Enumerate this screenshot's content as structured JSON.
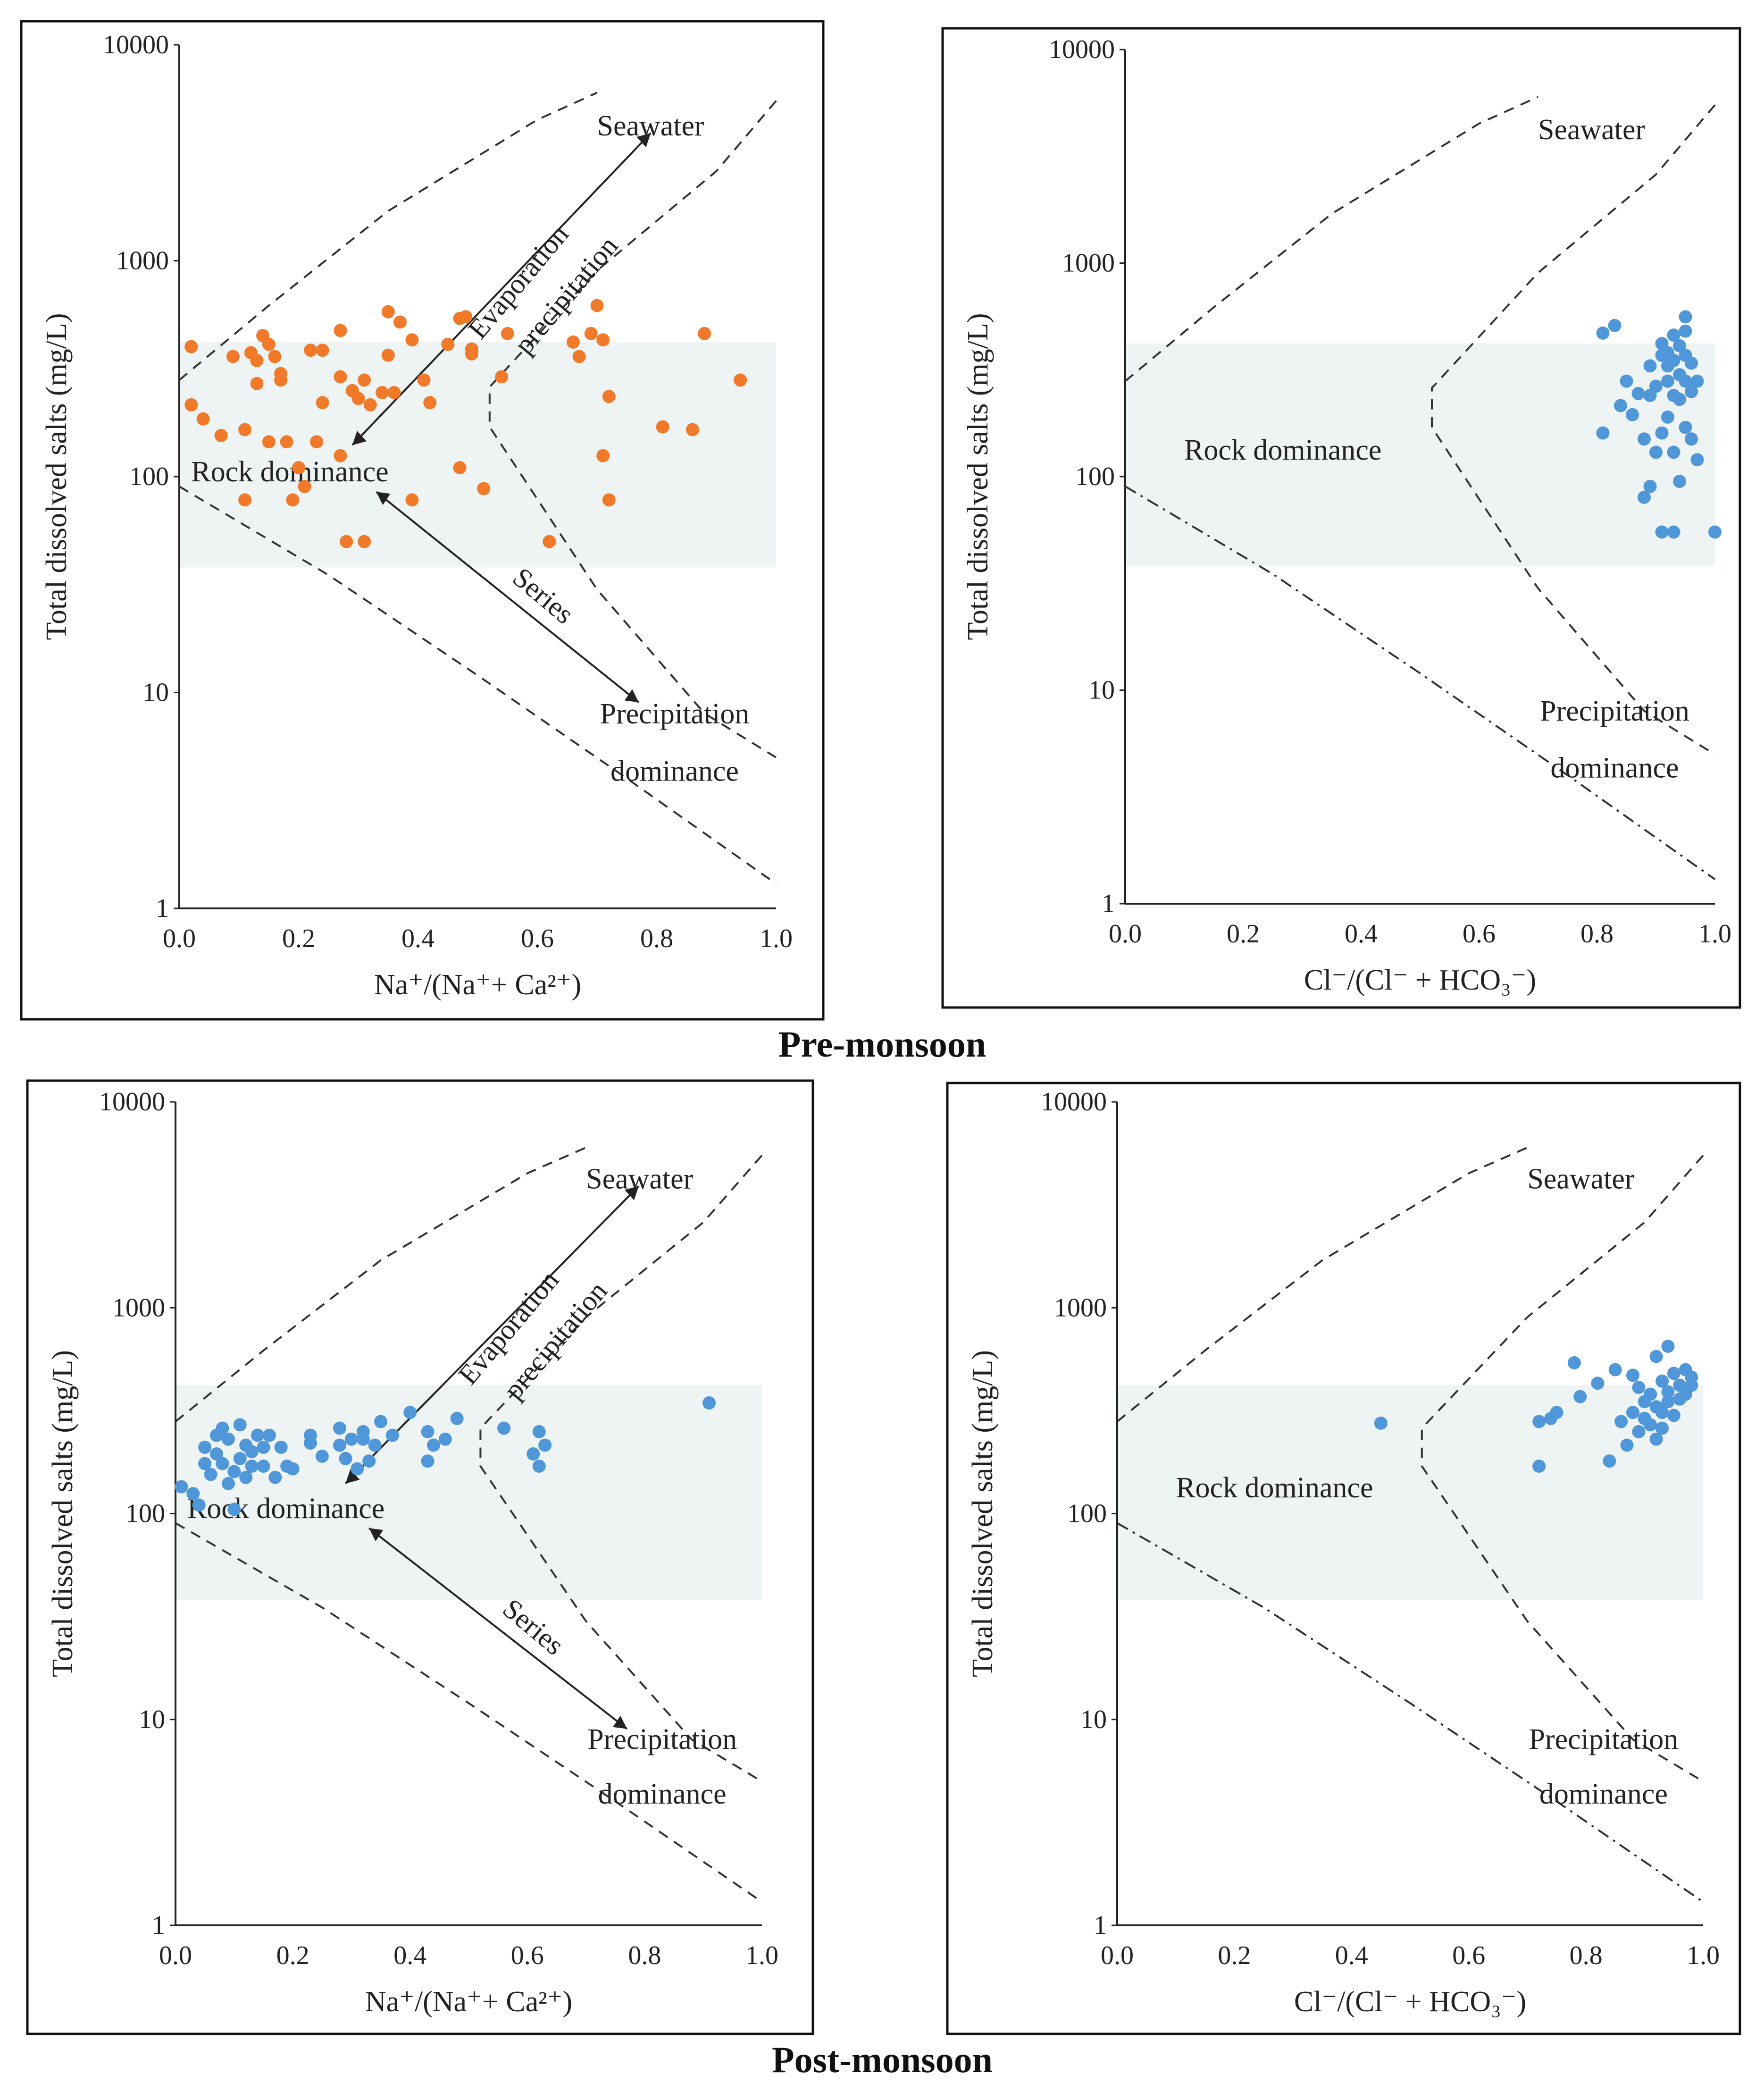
{
  "figure": {
    "captions": {
      "pre": "Pre-monsoon",
      "post": "Post-monsoon"
    },
    "colors": {
      "pre_points": "#f07a2a",
      "post_points": "#4f97d8",
      "rock_band": "#eef3f3",
      "frame": "#111111"
    }
  },
  "chart_data": [
    {
      "id": "pre-cations",
      "type": "scatter",
      "season": "Pre-monsoon",
      "ylabel": "Total dissolved salts (mg/L)",
      "xlabel": "Na⁺/(Na⁺+ Ca²⁺)",
      "xlim": [
        0.0,
        1.0
      ],
      "ylim": [
        1,
        10000
      ],
      "yscale": "log",
      "xticks": [
        "0.0",
        "0.2",
        "0.4",
        "0.6",
        "0.8",
        "1.0"
      ],
      "yticks": [
        "1",
        "10",
        "100",
        "1000",
        "10000"
      ],
      "labels": {
        "seawater": "Seawater",
        "rock": "Rock dominance",
        "precip1": "Precipitation",
        "precip2": "dominance",
        "evap": "Evaporation",
        "evap2": "precipitation",
        "series": "Series"
      },
      "point_color": "#f07a2a",
      "points": [
        [
          0.02,
          400
        ],
        [
          0.02,
          215
        ],
        [
          0.04,
          185
        ],
        [
          0.07,
          155
        ],
        [
          0.09,
          360
        ],
        [
          0.11,
          165
        ],
        [
          0.11,
          78
        ],
        [
          0.12,
          375
        ],
        [
          0.13,
          345
        ],
        [
          0.13,
          270
        ],
        [
          0.14,
          450
        ],
        [
          0.15,
          145
        ],
        [
          0.15,
          410
        ],
        [
          0.16,
          360
        ],
        [
          0.17,
          300
        ],
        [
          0.17,
          280
        ],
        [
          0.18,
          145
        ],
        [
          0.19,
          78
        ],
        [
          0.2,
          110
        ],
        [
          0.21,
          90
        ],
        [
          0.22,
          385
        ],
        [
          0.23,
          145
        ],
        [
          0.24,
          385
        ],
        [
          0.24,
          220
        ],
        [
          0.27,
          125
        ],
        [
          0.27,
          475
        ],
        [
          0.27,
          290
        ],
        [
          0.28,
          50
        ],
        [
          0.29,
          250
        ],
        [
          0.3,
          230
        ],
        [
          0.31,
          50
        ],
        [
          0.31,
          280
        ],
        [
          0.32,
          215
        ],
        [
          0.34,
          245
        ],
        [
          0.35,
          580
        ],
        [
          0.35,
          365
        ],
        [
          0.36,
          245
        ],
        [
          0.37,
          520
        ],
        [
          0.39,
          430
        ],
        [
          0.39,
          78
        ],
        [
          0.41,
          280
        ],
        [
          0.42,
          220
        ],
        [
          0.45,
          410
        ],
        [
          0.47,
          540
        ],
        [
          0.47,
          110
        ],
        [
          0.48,
          550
        ],
        [
          0.49,
          370
        ],
        [
          0.49,
          390
        ],
        [
          0.51,
          88
        ],
        [
          0.54,
          290
        ],
        [
          0.55,
          460
        ],
        [
          0.62,
          50
        ],
        [
          0.66,
          420
        ],
        [
          0.67,
          360
        ],
        [
          0.69,
          460
        ],
        [
          0.7,
          620
        ],
        [
          0.71,
          430
        ],
        [
          0.71,
          125
        ],
        [
          0.72,
          235
        ],
        [
          0.72,
          78
        ],
        [
          0.81,
          170
        ],
        [
          0.86,
          165
        ],
        [
          0.88,
          460
        ],
        [
          0.94,
          280
        ]
      ]
    },
    {
      "id": "pre-anions",
      "type": "scatter",
      "season": "Pre-monsoon",
      "ylabel": "Total dissolved salts (mg/L)",
      "xlabel": "Cl⁻/(Cl⁻ + HCO₃⁻)",
      "xlim": [
        0.0,
        1.0
      ],
      "ylim": [
        1,
        10000
      ],
      "yscale": "log",
      "xticks": [
        "0.0",
        "0.2",
        "0.4",
        "0.6",
        "0.8",
        "1.0"
      ],
      "yticks": [
        "1",
        "10",
        "100",
        "1000",
        "10000"
      ],
      "labels": {
        "seawater": "Seawater",
        "rock": "Rock dominance",
        "precip1": "Precipitation",
        "precip2": "dominance"
      },
      "point_color": "#4f97d8",
      "points": [
        [
          0.81,
          470
        ],
        [
          0.81,
          160
        ],
        [
          0.83,
          510
        ],
        [
          0.84,
          215
        ],
        [
          0.85,
          280
        ],
        [
          0.86,
          195
        ],
        [
          0.87,
          245
        ],
        [
          0.88,
          150
        ],
        [
          0.88,
          80
        ],
        [
          0.89,
          90
        ],
        [
          0.89,
          330
        ],
        [
          0.89,
          240
        ],
        [
          0.9,
          130
        ],
        [
          0.9,
          265
        ],
        [
          0.91,
          370
        ],
        [
          0.91,
          420
        ],
        [
          0.91,
          160
        ],
        [
          0.91,
          55
        ],
        [
          0.92,
          330
        ],
        [
          0.92,
          380
        ],
        [
          0.92,
          280
        ],
        [
          0.92,
          190
        ],
        [
          0.93,
          240
        ],
        [
          0.93,
          460
        ],
        [
          0.93,
          350
        ],
        [
          0.93,
          130
        ],
        [
          0.93,
          55
        ],
        [
          0.94,
          410
        ],
        [
          0.94,
          300
        ],
        [
          0.94,
          230
        ],
        [
          0.94,
          95
        ],
        [
          0.95,
          370
        ],
        [
          0.95,
          480
        ],
        [
          0.95,
          560
        ],
        [
          0.95,
          280
        ],
        [
          0.95,
          170
        ],
        [
          0.96,
          340
        ],
        [
          0.96,
          250
        ],
        [
          0.96,
          150
        ],
        [
          0.97,
          280
        ],
        [
          0.97,
          120
        ],
        [
          1.0,
          55
        ]
      ]
    },
    {
      "id": "post-cations",
      "type": "scatter",
      "season": "Post-monsoon",
      "ylabel": "Total dissolved salts (mg/L)",
      "xlabel": "Na⁺/(Na⁺+ Ca²⁺)",
      "xlim": [
        0.0,
        1.0
      ],
      "ylim": [
        1,
        10000
      ],
      "yscale": "log",
      "xticks": [
        "0.0",
        "0.2",
        "0.4",
        "0.6",
        "0.8",
        "1.0"
      ],
      "yticks": [
        "1",
        "10",
        "100",
        "1000",
        "10000"
      ],
      "labels": {
        "seawater": "Seawater",
        "rock": "Rock dominance",
        "precip1": "Precipitation",
        "precip2": "dominance",
        "evap": "Evaporation",
        "evap2": "precipitation",
        "series": "Series"
      },
      "point_color": "#4f97d8",
      "points": [
        [
          0.01,
          135
        ],
        [
          0.03,
          125
        ],
        [
          0.04,
          110
        ],
        [
          0.05,
          175
        ],
        [
          0.05,
          210
        ],
        [
          0.06,
          155
        ],
        [
          0.07,
          240
        ],
        [
          0.07,
          195
        ],
        [
          0.08,
          260
        ],
        [
          0.08,
          175
        ],
        [
          0.09,
          140
        ],
        [
          0.09,
          230
        ],
        [
          0.1,
          160
        ],
        [
          0.1,
          105
        ],
        [
          0.11,
          185
        ],
        [
          0.11,
          270
        ],
        [
          0.12,
          215
        ],
        [
          0.12,
          150
        ],
        [
          0.13,
          200
        ],
        [
          0.13,
          170
        ],
        [
          0.14,
          240
        ],
        [
          0.15,
          210
        ],
        [
          0.15,
          170
        ],
        [
          0.16,
          240
        ],
        [
          0.17,
          150
        ],
        [
          0.18,
          210
        ],
        [
          0.19,
          170
        ],
        [
          0.2,
          165
        ],
        [
          0.23,
          220
        ],
        [
          0.23,
          240
        ],
        [
          0.25,
          190
        ],
        [
          0.28,
          260
        ],
        [
          0.28,
          215
        ],
        [
          0.29,
          185
        ],
        [
          0.3,
          230
        ],
        [
          0.31,
          165
        ],
        [
          0.32,
          230
        ],
        [
          0.32,
          250
        ],
        [
          0.33,
          180
        ],
        [
          0.34,
          215
        ],
        [
          0.35,
          280
        ],
        [
          0.37,
          240
        ],
        [
          0.4,
          310
        ],
        [
          0.43,
          250
        ],
        [
          0.43,
          180
        ],
        [
          0.44,
          215
        ],
        [
          0.46,
          230
        ],
        [
          0.48,
          290
        ],
        [
          0.56,
          260
        ],
        [
          0.61,
          195
        ],
        [
          0.62,
          170
        ],
        [
          0.62,
          250
        ],
        [
          0.63,
          215
        ],
        [
          0.91,
          345
        ]
      ]
    },
    {
      "id": "post-anions",
      "type": "scatter",
      "season": "Post-monsoon",
      "ylabel": "Total dissolved salts (mg/L)",
      "xlabel": "Cl⁻/(Cl⁻ + HCO₃⁻)",
      "xlim": [
        0.0,
        1.0
      ],
      "ylim": [
        1,
        10000
      ],
      "yscale": "log",
      "xticks": [
        "0.0",
        "0.2",
        "0.4",
        "0.6",
        "0.8",
        "1.0"
      ],
      "yticks": [
        "1",
        "10",
        "100",
        "1000",
        "10000"
      ],
      "labels": {
        "seawater": "Seawater",
        "rock": "Rock dominance",
        "precip1": "Precipitation",
        "precip2": "dominance"
      },
      "point_color": "#4f97d8",
      "points": [
        [
          0.45,
          275
        ],
        [
          0.72,
          170
        ],
        [
          0.72,
          280
        ],
        [
          0.74,
          290
        ],
        [
          0.75,
          310
        ],
        [
          0.78,
          540
        ],
        [
          0.79,
          370
        ],
        [
          0.82,
          430
        ],
        [
          0.84,
          180
        ],
        [
          0.85,
          500
        ],
        [
          0.86,
          280
        ],
        [
          0.87,
          215
        ],
        [
          0.88,
          470
        ],
        [
          0.88,
          310
        ],
        [
          0.89,
          250
        ],
        [
          0.89,
          410
        ],
        [
          0.9,
          290
        ],
        [
          0.9,
          350
        ],
        [
          0.91,
          380
        ],
        [
          0.91,
          270
        ],
        [
          0.92,
          330
        ],
        [
          0.92,
          230
        ],
        [
          0.92,
          580
        ],
        [
          0.93,
          440
        ],
        [
          0.93,
          310
        ],
        [
          0.93,
          260
        ],
        [
          0.94,
          650
        ],
        [
          0.94,
          390
        ],
        [
          0.94,
          350
        ],
        [
          0.95,
          480
        ],
        [
          0.95,
          300
        ],
        [
          0.96,
          420
        ],
        [
          0.96,
          360
        ],
        [
          0.97,
          500
        ],
        [
          0.97,
          380
        ],
        [
          0.98,
          460
        ],
        [
          0.98,
          420
        ]
      ]
    }
  ]
}
